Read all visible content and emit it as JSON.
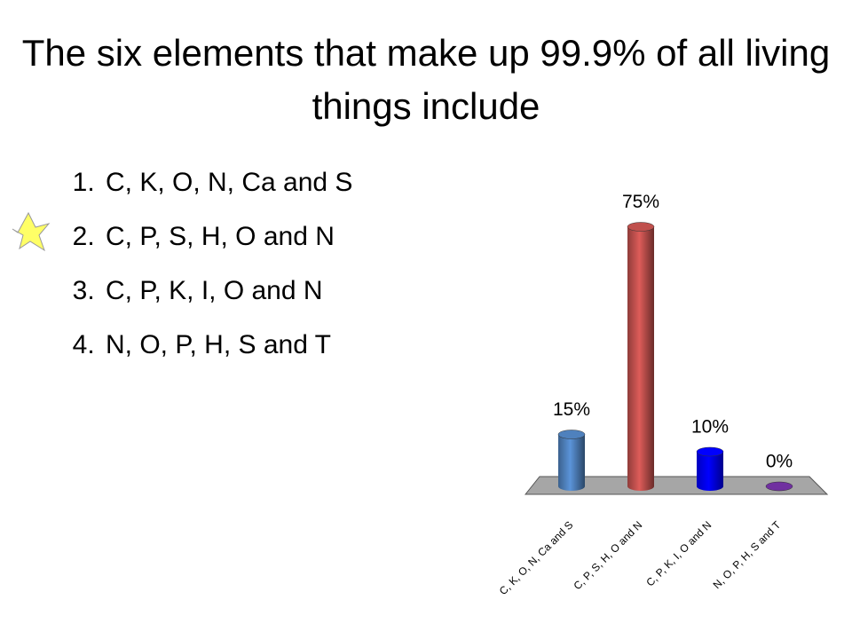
{
  "chart_data": {
    "type": "bar",
    "title": "The six elements that make up 99.9% of all living things include",
    "categories": [
      "C, K, O, N, Ca and S",
      "C, P, S, H, O and N",
      "C, P, K, I, O and N",
      "N, O, P, H, S and T"
    ],
    "values": [
      15,
      75,
      10,
      0
    ],
    "value_labels": [
      "15%",
      "75%",
      "10%",
      "0%"
    ],
    "colors": [
      "#4f81bd",
      "#c0504d",
      "#0000ff",
      "#7030a0"
    ]
  }
}
